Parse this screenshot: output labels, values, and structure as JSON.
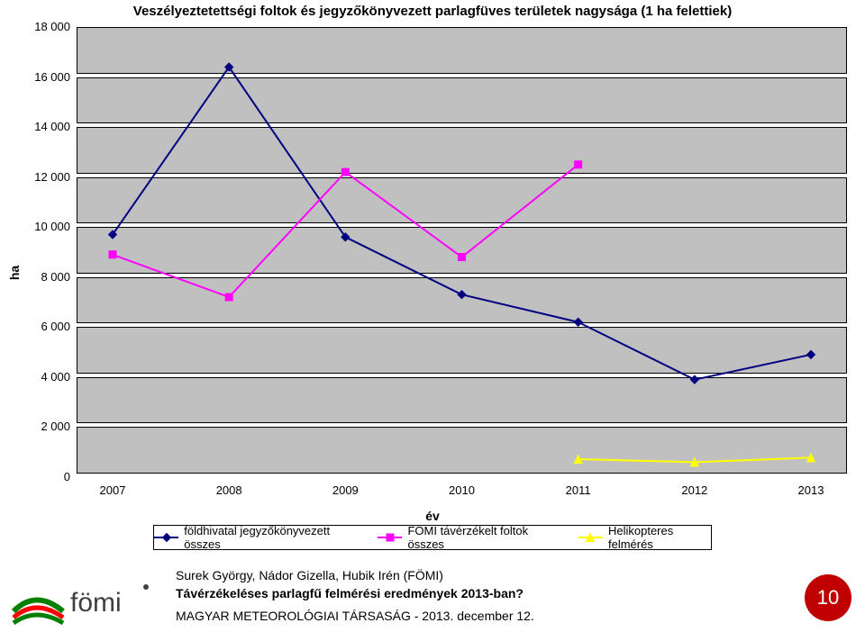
{
  "title": "Veszélyeztetettségi foltok és jegyzőkönyvezett parlagfüves területek nagysága (1 ha felettiek)",
  "chart": {
    "type": "line",
    "x_label": "év",
    "y_label": "ha",
    "x_categories": [
      "2007",
      "2008",
      "2009",
      "2010",
      "2011",
      "2012",
      "2013"
    ],
    "y_min": 0,
    "y_max": 18000,
    "y_tick_step": 2000,
    "y_tick_labels": [
      "0",
      "2 000",
      "4 000",
      "6 000",
      "8 000",
      "10 000",
      "12 000",
      "14 000",
      "16 000",
      "18 000"
    ],
    "gridline_fill": "#c0c0c0",
    "gridline_border": "#000000",
    "plot_background": "#c0c0c0",
    "series": [
      {
        "name": "földhivatal jegyzőkönyvezett összes",
        "color": "#000080",
        "marker": "diamond",
        "marker_size": 9,
        "line_width": 2,
        "values": [
          9700,
          16400,
          9600,
          7300,
          6200,
          3900,
          4900
        ]
      },
      {
        "name": "FÖMI távérzékelt foltok összes",
        "color": "#ff00ff",
        "marker": "square",
        "marker_size": 8,
        "line_width": 2,
        "values": [
          8900,
          7200,
          12200,
          8800,
          12500,
          null,
          null
        ]
      },
      {
        "name": "Helikopteres felmérés",
        "color": "#ffff00",
        "marker": "triangle",
        "marker_size": 9,
        "line_width": 2,
        "values": [
          null,
          null,
          null,
          null,
          720,
          600,
          780
        ]
      }
    ]
  },
  "legend": {
    "items": [
      "földhivatal jegyzőkönyvezett összes",
      "FÖMI távérzékelt foltok összes",
      "Helikopteres felmérés"
    ]
  },
  "footer": {
    "line1": "Surek György, Nádor Gizella, Hubik Irén (FÖMI)",
    "line2": "Távérzékeléses parlagfű felmérési eredmények 2013-ban?",
    "line3": "MAGYAR METEOROLÓGIAI TÁRSASÁG  - 2013. december 12.",
    "page_number": "10",
    "badge_color": "#c00000",
    "logo_text": "fömi",
    "logo_colors": [
      "#008000",
      "#ff0000"
    ]
  }
}
